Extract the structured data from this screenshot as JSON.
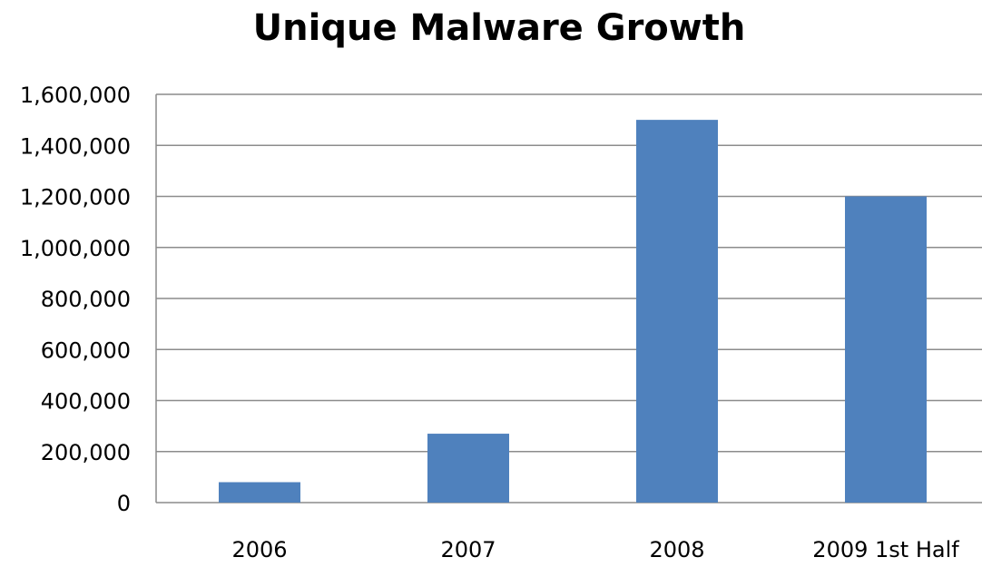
{
  "chart_data": {
    "type": "bar",
    "title": "Unique Malware Growth",
    "xlabel": "",
    "ylabel": "",
    "categories": [
      "2006",
      "2007",
      "2008",
      "2009 1st Half"
    ],
    "values": [
      80000,
      270000,
      1500000,
      1200000
    ],
    "ylim": [
      0,
      1600000
    ],
    "yticks": [
      0,
      200000,
      400000,
      600000,
      800000,
      1000000,
      1200000,
      1400000,
      1600000
    ],
    "ytick_labels": [
      "0",
      "200,000",
      "400,000",
      "600,000",
      "800,000",
      "1,000,000",
      "1,200,000",
      "1,400,000",
      "1,600,000"
    ],
    "grid": true,
    "legend": "none",
    "bar_color": "#4F81BD"
  }
}
